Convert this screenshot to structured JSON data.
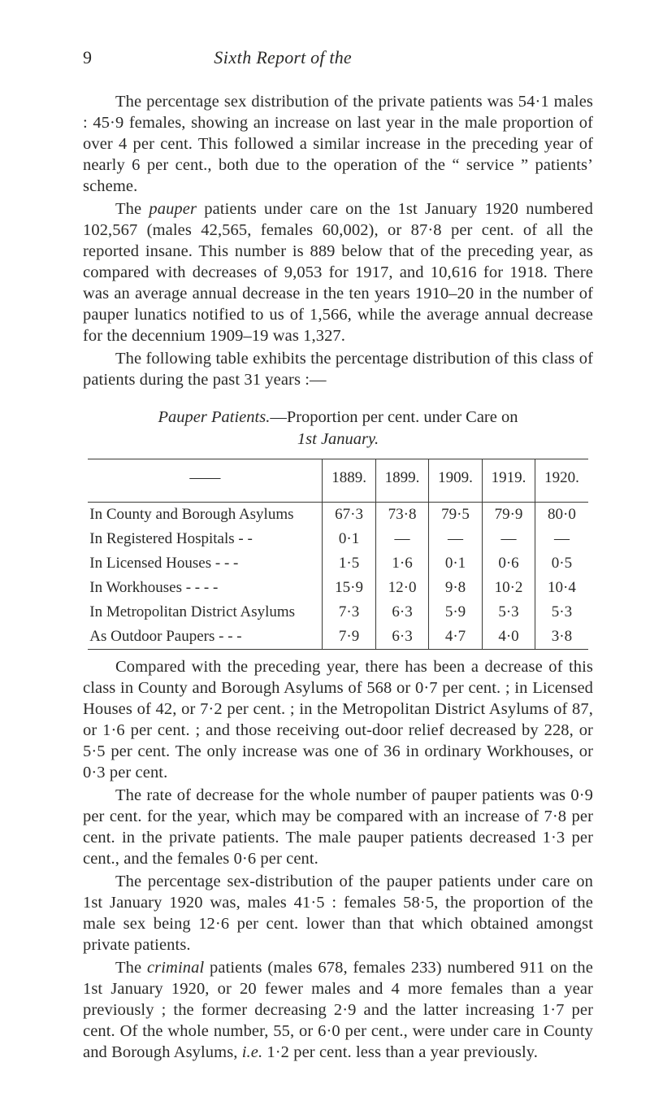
{
  "page_number": "9",
  "header_title_sixth": "Sixth",
  "header_title_rest": " Report of the",
  "para1": "The percentage sex distribution of the private patients was 54·1 males : 45·9 females, showing an increase on last year in the male proportion of over 4 per cent. This followed a similar increase in the preceding year of nearly 6 per cent., both due to the operation of the “ service ” patients’ scheme.",
  "para2a": "The ",
  "para2_ital1": "pauper",
  "para2b": " patients under care on the 1st January 1920 numbered 102,567 (males 42,565, females 60,002), or 87·8 per cent. of all the reported insane. This number is 889 below that of the preceding year, as compared with decreases of 9,053 for 1917, and 10,616 for 1918. There was an average annual decrease in the ten years 1910–20 in the number of pauper lunatics notified to us of 1,566, while the average annual decrease for the decennium 1909–19 was 1,327.",
  "para3": "The following table exhibits the percentage distribution of this class of patients during the past 31 years :—",
  "table_title_line1_a": "Pauper Patients.",
  "table_title_line1_b": "—Proportion per cent. under Care on",
  "table_title_line2": "1st January.",
  "table": {
    "col_headers": [
      "——",
      "1889.",
      "1899.",
      "1909.",
      "1919.",
      "1920."
    ],
    "rows": [
      {
        "label": "In County and Borough Asylums",
        "cells": [
          "67·3",
          "73·8",
          "79·5",
          "79·9",
          "80·0"
        ]
      },
      {
        "label": "In Registered Hospitals    -    -",
        "cells": [
          "0·1",
          "—",
          "—",
          "—",
          "—"
        ]
      },
      {
        "label": "In Licensed Houses    -    -    -",
        "cells": [
          "1·5",
          "1·6",
          "0·1",
          "0·6",
          "0·5"
        ]
      },
      {
        "label": "In Workhouses    -    -    -    -",
        "cells": [
          "15·9",
          "12·0",
          "9·8",
          "10·2",
          "10·4"
        ]
      },
      {
        "label": "In Metropolitan District Asylums",
        "cells": [
          "7·3",
          "6·3",
          "5·9",
          "5·3",
          "5·3"
        ]
      },
      {
        "label": "As Outdoor Paupers    -    -    -",
        "cells": [
          "7·9",
          "6·3",
          "4·7",
          "4·0",
          "3·8"
        ]
      }
    ]
  },
  "para4": "Compared with the preceding year, there has been a decrease of this class in County and Borough Asylums of 568 or 0·7 per cent. ; in Licensed Houses of 42, or 7·2 per cent. ; in the Metropolitan District Asylums of 87, or 1·6 per cent. ; and those receiving out-door relief decreased by 228, or 5·5 per cent. The only increase was one of 36 in ordinary Workhouses, or 0·3 per cent.",
  "para5": "The rate of decrease for the whole number of pauper patients was 0·9 per cent. for the year, which may be compared with an increase of 7·8 per cent. in the private patients. The male pauper patients decreased 1·3 per cent., and the females 0·6 per cent.",
  "para6": "The percentage sex-distribution of the pauper patients under care on 1st January 1920 was, males 41·5 : females 58·5, the proportion of the male sex being 12·6 per cent. lower than that which obtained amongst private patients.",
  "para7a": "The ",
  "para7_ital": "criminal",
  "para7b": " patients (males 678, females 233) numbered 911 on the 1st January 1920, or 20 fewer males and 4 more females than a year previously ; the former decreasing 2·9 and the latter increasing 1·7 per cent. Of the whole number, 55, or 6·0 per cent., were under care in County and Borough Asylums, ",
  "para7_ie": "i.e.",
  "para7c": " 1·2 per cent. less than a year previously.",
  "colors": {
    "text": "#2a2a28",
    "rule": "#3a3a36",
    "background": "#ffffff"
  },
  "fonts": {
    "body_family": "Times New Roman",
    "body_size_pt": 15,
    "header_size_pt": 16
  }
}
